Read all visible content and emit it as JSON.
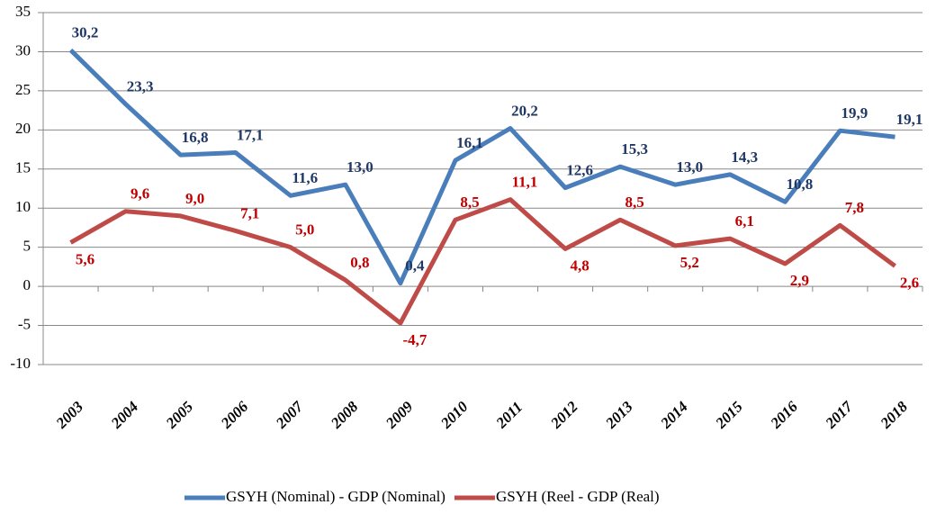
{
  "chart_data": {
    "type": "line",
    "categories": [
      "2003",
      "2004",
      "2005",
      "2006",
      "2007",
      "2008",
      "2009",
      "2010",
      "2011",
      "2012",
      "2013",
      "2014",
      "2015",
      "2016",
      "2017",
      "2018"
    ],
    "series": [
      {
        "name": "GSYH (Nominal) - GDP (Nominal)",
        "color": "#4a7ebb",
        "values": [
          30.2,
          23.3,
          16.8,
          17.1,
          11.6,
          13.0,
          0.4,
          16.1,
          20.2,
          12.6,
          15.3,
          13.0,
          14.3,
          10.8,
          19.9,
          19.1
        ],
        "value_labels": [
          "30,2",
          "23,3",
          "16,8",
          "17,1",
          "11,6",
          "13,0",
          "0,4",
          "16,1",
          "20,2",
          "12,6",
          "15,3",
          "13,0",
          "14,3",
          "10,8",
          "19,9",
          "19,1"
        ]
      },
      {
        "name": "GSYH (Reel - GDP (Real)",
        "color": "#be4b48",
        "values": [
          5.6,
          9.6,
          9.0,
          7.1,
          5.0,
          0.8,
          -4.7,
          8.5,
          11.1,
          4.8,
          8.5,
          5.2,
          6.1,
          2.9,
          7.8,
          2.6
        ],
        "value_labels": [
          "5,6",
          "9,6",
          "9,0",
          "7,1",
          "5,0",
          "0,8",
          "-4,7",
          "8,5",
          "11,1",
          "4,8",
          "8,5",
          "5,2",
          "6,1",
          "2,9",
          "7,8",
          "2,6"
        ]
      }
    ],
    "ylim": [
      -10,
      35
    ],
    "yticks": [
      -10,
      -5,
      0,
      5,
      10,
      15,
      20,
      25,
      30,
      35
    ],
    "grid": true,
    "legend": "bottom"
  }
}
